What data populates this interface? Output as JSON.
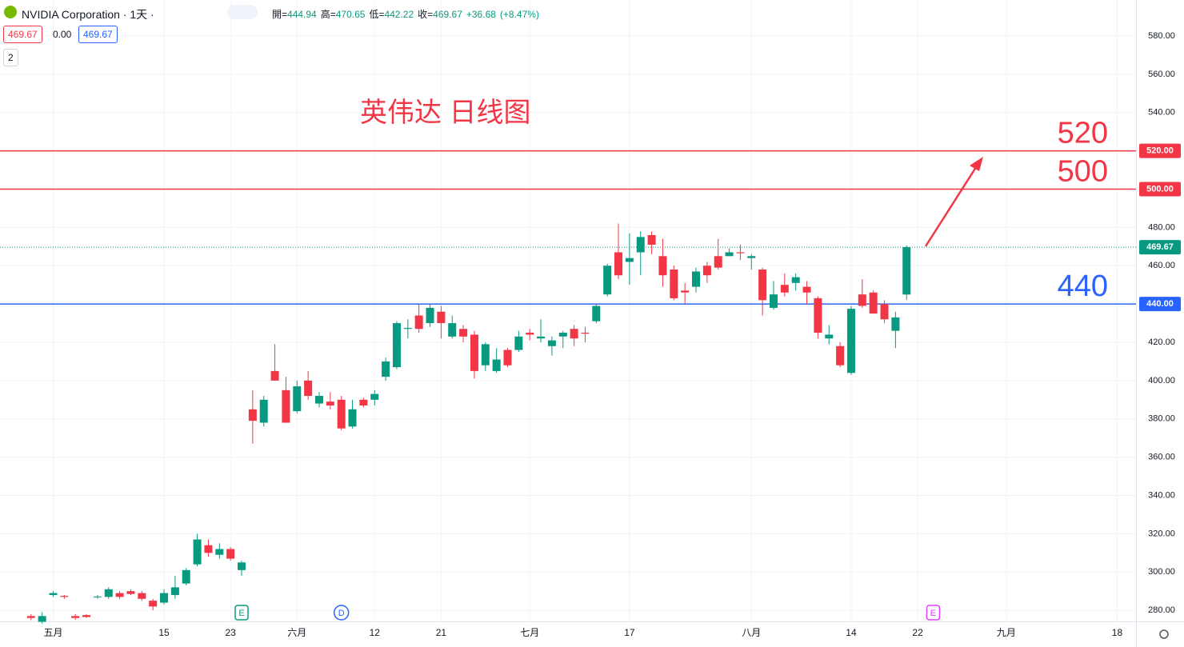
{
  "header": {
    "symbol": "NVIDIA Corporation · 1天 ·",
    "ohlc": [
      {
        "label": "開=",
        "value": 444.94
      },
      {
        "label": "高=",
        "value": 470.65
      },
      {
        "label": "低=",
        "value": 442.22
      },
      {
        "label": "收=",
        "value": 469.67
      }
    ],
    "change": {
      "value": 36.68,
      "label": "+36.68"
    },
    "change_pct": {
      "value": 8.47,
      "label": "(+8.47%)"
    },
    "boxes": [
      "469.67",
      "0.00",
      "469.67"
    ],
    "indicator": "2"
  },
  "chart_data": {
    "type": "candlestick",
    "title": "英伟达 日线图",
    "up_color": "#089981",
    "down_color": "#f23645",
    "grid": true,
    "xlim": [
      -2.8,
      99.7
    ],
    "ylim": [
      274.2,
      598.8
    ],
    "xticks": [
      {
        "value": 2,
        "label": "五月"
      },
      {
        "value": 12,
        "label": "15"
      },
      {
        "value": 18,
        "label": "23"
      },
      {
        "value": 24,
        "label": "六月"
      },
      {
        "value": 31,
        "label": "12"
      },
      {
        "value": 37,
        "label": "21"
      },
      {
        "value": 45,
        "label": "七月"
      },
      {
        "value": 54,
        "label": "17"
      },
      {
        "value": 65,
        "label": "八月"
      },
      {
        "value": 74,
        "label": "14"
      },
      {
        "value": 80,
        "label": "22"
      },
      {
        "value": 88,
        "label": "九月"
      },
      {
        "value": 98,
        "label": "18"
      }
    ],
    "yticks": [
      {
        "value": 280,
        "label": "280.00"
      },
      {
        "value": 300,
        "label": "300.00"
      },
      {
        "value": 320,
        "label": "320.00"
      },
      {
        "value": 340,
        "label": "340.00"
      },
      {
        "value": 360,
        "label": "360.00"
      },
      {
        "value": 380,
        "label": "380.00"
      },
      {
        "value": 400,
        "label": "400.00"
      },
      {
        "value": 420,
        "label": "420.00"
      },
      {
        "value": 440,
        "label": "440.00"
      },
      {
        "value": 460,
        "label": "460.00"
      },
      {
        "value": 480,
        "label": "480.00"
      },
      {
        "value": 500,
        "label": "500.00"
      },
      {
        "value": 520,
        "label": "520.00"
      },
      {
        "value": 540,
        "label": "540.00"
      },
      {
        "value": 560,
        "label": "560.00"
      },
      {
        "value": 580,
        "label": "580.00"
      }
    ],
    "x": [
      0,
      1,
      2,
      3,
      4,
      5,
      6,
      7,
      8,
      9,
      10,
      11,
      12,
      13,
      14,
      15,
      16,
      17,
      18,
      19,
      20,
      21,
      22,
      23,
      24,
      25,
      26,
      27,
      28,
      29,
      30,
      31,
      32,
      33,
      34,
      35,
      36,
      37,
      38,
      39,
      40,
      41,
      42,
      43,
      44,
      45,
      46,
      47,
      48,
      49,
      50,
      51,
      52,
      53,
      54,
      55,
      56,
      57,
      58,
      59,
      60,
      61,
      62,
      63,
      64,
      65,
      66,
      67,
      68,
      69,
      70,
      71,
      72,
      73,
      74,
      75,
      76,
      77,
      78,
      79
    ],
    "open": [
      277,
      274,
      288,
      287.5,
      277,
      277.5,
      287,
      287,
      289,
      290,
      289,
      285,
      284,
      288,
      294,
      304,
      314,
      309,
      312,
      301,
      385,
      378,
      405,
      395,
      384,
      400,
      388,
      389,
      390,
      376,
      390,
      390,
      402,
      407,
      427,
      434,
      430,
      436,
      423,
      427,
      424,
      408,
      405,
      416,
      416,
      425,
      422,
      418,
      423,
      427,
      425,
      431,
      445,
      467,
      462,
      467,
      476,
      465,
      458,
      447,
      449,
      460,
      465,
      465,
      467,
      464,
      458,
      438,
      450,
      451,
      449,
      443,
      422,
      418,
      404,
      445,
      446,
      440,
      426,
      444.94
    ],
    "high": [
      278,
      279,
      290,
      288,
      278,
      278,
      288,
      292,
      290,
      291,
      290,
      286,
      291,
      298,
      302,
      320,
      317,
      315,
      313,
      306,
      395,
      392,
      419,
      402,
      400,
      405,
      394,
      394,
      392,
      390,
      391,
      395,
      412,
      431,
      432,
      440,
      440,
      439,
      434,
      429,
      426,
      420,
      417,
      417,
      426,
      427,
      432,
      423,
      426,
      429,
      428,
      440,
      461,
      482,
      477,
      478,
      478,
      474,
      460,
      451,
      459,
      462,
      474,
      469,
      471,
      466,
      459,
      452,
      456,
      456,
      452,
      444,
      429,
      420,
      439,
      453,
      447,
      442,
      436,
      470.65
    ],
    "low": [
      275,
      273,
      287,
      286,
      275,
      276,
      286,
      286,
      286,
      288,
      285,
      280,
      283,
      286,
      293,
      303,
      308,
      307,
      306,
      298,
      367,
      376,
      400,
      378,
      383,
      390,
      386,
      385,
      374,
      375,
      386,
      387,
      400,
      406,
      422,
      425,
      428,
      422,
      422,
      420,
      401,
      405,
      404,
      407,
      415,
      421,
      420,
      413,
      417,
      418,
      420,
      430,
      444,
      453,
      450,
      455,
      466,
      449,
      442,
      440,
      446,
      451,
      458,
      465,
      463,
      458,
      434,
      437,
      444,
      447,
      440,
      422,
      419,
      407,
      403,
      438,
      435,
      430,
      417,
      442.22
    ],
    "close": [
      276,
      277,
      289,
      287,
      276,
      276.5,
      287.2,
      291,
      287,
      288.5,
      286,
      282,
      289,
      292,
      301,
      317,
      310,
      312,
      307,
      305,
      379,
      390,
      400,
      378,
      397,
      392,
      392,
      387,
      375,
      385,
      387,
      393,
      410,
      430,
      427.5,
      427,
      438,
      430,
      430,
      423,
      405,
      419,
      411,
      408,
      423,
      424,
      423,
      421,
      425,
      422,
      424.5,
      439,
      460,
      455,
      464,
      475,
      471,
      455,
      443,
      446,
      457,
      455,
      459,
      467,
      466.5,
      465,
      442,
      445,
      446,
      454,
      446,
      425,
      424,
      408,
      437.5,
      439,
      435,
      432,
      433,
      469.67
    ],
    "hlines": [
      {
        "value": 520,
        "label": "520.00",
        "note": "520",
        "color": "#f23645"
      },
      {
        "value": 500,
        "label": "500.00",
        "note": "500",
        "color": "#f23645"
      },
      {
        "value": 440,
        "label": "440.00",
        "note": "440",
        "color": "#2962ff"
      }
    ],
    "price_line": {
      "value": 469.67,
      "label": "469.67",
      "color": "#089981"
    },
    "events": [
      {
        "x": 19,
        "label": "E",
        "color": "#089981"
      },
      {
        "x": 28,
        "label": "D",
        "color": "#2962ff"
      },
      {
        "x": 81.4,
        "label": "E",
        "color": "#e040fb"
      }
    ]
  }
}
